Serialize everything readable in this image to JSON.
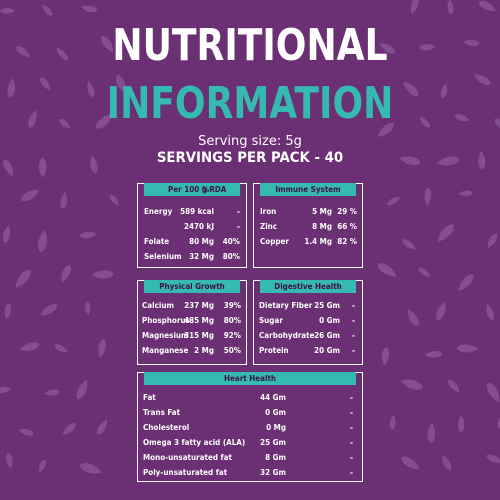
{
  "header": {
    "title_line1": "NUTRITIONAL",
    "title_line2": "INFORMATION",
    "serving_size": "Serving size: 5g",
    "servings_per_pack": "SERVINGS PER PACK - 40"
  },
  "energy_table": {
    "header_per100": "Per 100 g",
    "header_rda": "%RDA",
    "rows": [
      {
        "name": "Energy",
        "amount": "589 kcal",
        "rda": "-"
      },
      {
        "name": "",
        "amount": "2470 kJ",
        "rda": "-"
      },
      {
        "name": "Folate",
        "amount": "80 Mg",
        "rda": "40%"
      },
      {
        "name": "Selenium",
        "amount": "32 Mg",
        "rda": "80%"
      }
    ]
  },
  "immune_table": {
    "title": "Immune System",
    "rows": [
      {
        "name": "Iron",
        "amount": "5 Mg",
        "rda": "29 %"
      },
      {
        "name": "Zinc",
        "amount": "8 Mg",
        "rda": "66 %"
      },
      {
        "name": "Copper",
        "amount": "1.4 Mg",
        "rda": "82 %"
      }
    ]
  },
  "growth_table": {
    "title": "Physical Growth",
    "rows": [
      {
        "name": "Calcium",
        "amount": "237 Mg",
        "rda": "39%"
      },
      {
        "name": "Phosphorus",
        "amount": "485 Mg",
        "rda": "80%"
      },
      {
        "name": "Magnesium",
        "amount": "315 Mg",
        "rda": "92%"
      },
      {
        "name": "Manganese",
        "amount": "2 Mg",
        "rda": "50%"
      }
    ]
  },
  "digestive_table": {
    "title": "Digestive Health",
    "rows": [
      {
        "name": "Dietary Fiber",
        "amount": "25 Gm",
        "rda": "-"
      },
      {
        "name": "Sugar",
        "amount": "0 Gm",
        "rda": "-"
      },
      {
        "name": "Carbohydrate",
        "amount": "26 Gm",
        "rda": "-"
      },
      {
        "name": "Protein",
        "amount": "20 Gm",
        "rda": "-"
      }
    ]
  },
  "heart_table": {
    "title": "Heart Health",
    "rows": [
      {
        "name": "Fat",
        "amount": "44 Gm",
        "rda": "-"
      },
      {
        "name": "Trans Fat",
        "amount": "0 Gm",
        "rda": "-"
      },
      {
        "name": "Cholesterol",
        "amount": "0 Mg",
        "rda": "-"
      },
      {
        "name": "Omega 3 fatty acid (ALA)",
        "amount": "25 Gm",
        "rda": "-"
      },
      {
        "name": "Mono-unsaturated fat",
        "amount": "8 Gm",
        "rda": "-"
      },
      {
        "name": "Poly-unsaturated fat",
        "amount": "32 Gm",
        "rda": "-"
      }
    ]
  },
  "colors": {
    "background": "#6b2f73",
    "accent": "#35b9b0",
    "leaf": "#8a5596",
    "text": "#ffffff"
  }
}
